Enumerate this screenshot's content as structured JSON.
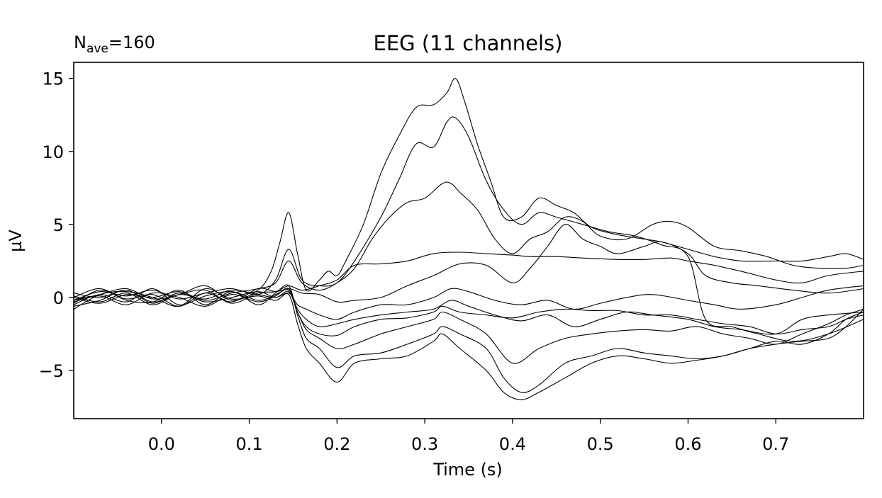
{
  "chart_data": {
    "type": "line",
    "title": "EEG (11 channels)",
    "annotation": {
      "prefix": "N",
      "subscript": "ave",
      "suffix": "=160"
    },
    "xlabel": "Time (s)",
    "ylabel": "µV",
    "xlim": [
      -0.1,
      0.8
    ],
    "ylim": [
      -8.3,
      16.1
    ],
    "xticks": [
      0.0,
      0.1,
      0.2,
      0.3,
      0.4,
      0.5,
      0.6,
      0.7
    ],
    "xtick_labels": [
      "0.0",
      "0.1",
      "0.2",
      "0.3",
      "0.4",
      "0.5",
      "0.6",
      "0.7"
    ],
    "yticks": [
      -5,
      0,
      5,
      10,
      15
    ],
    "ytick_labels": [
      "−5",
      "0",
      "5",
      "10",
      "15"
    ],
    "grid": false,
    "line_color": "#000000",
    "series": [
      {
        "x": [
          -0.1,
          -0.07,
          -0.04,
          -0.01,
          0.02,
          0.05,
          0.08,
          0.11,
          0.125,
          0.135,
          0.145,
          0.155,
          0.165,
          0.18,
          0.19,
          0.2,
          0.21,
          0.23,
          0.25,
          0.27,
          0.29,
          0.31,
          0.325,
          0.335,
          0.345,
          0.36,
          0.375,
          0.39,
          0.41,
          0.43,
          0.45,
          0.47,
          0.49,
          0.52,
          0.55,
          0.57,
          0.6,
          0.63,
          0.66,
          0.7,
          0.73,
          0.76,
          0.78,
          0.8
        ],
        "y": [
          -0.3,
          0.2,
          0.6,
          -0.1,
          0.2,
          0.8,
          -0.2,
          0.5,
          1.8,
          3.8,
          5.8,
          3.0,
          0.5,
          1.2,
          1.8,
          1.5,
          2.5,
          5.0,
          8.5,
          11.0,
          13.0,
          13.2,
          14.0,
          15.0,
          13.5,
          10.5,
          8.0,
          5.5,
          5.5,
          6.8,
          6.3,
          5.8,
          4.8,
          4.3,
          4.0,
          3.8,
          3.3,
          2.8,
          2.5,
          2.5,
          2.5,
          2.8,
          3.0,
          2.6
        ]
      },
      {
        "x": [
          -0.1,
          -0.07,
          -0.04,
          -0.01,
          0.02,
          0.05,
          0.08,
          0.11,
          0.13,
          0.145,
          0.16,
          0.18,
          0.2,
          0.22,
          0.25,
          0.27,
          0.29,
          0.31,
          0.325,
          0.335,
          0.35,
          0.37,
          0.39,
          0.41,
          0.43,
          0.45,
          0.48,
          0.51,
          0.54,
          0.57,
          0.6,
          0.62,
          0.65,
          0.68,
          0.72,
          0.76,
          0.8
        ],
        "y": [
          -0.2,
          0.4,
          0.1,
          0.5,
          -0.1,
          0.3,
          0.6,
          0.2,
          1.2,
          3.3,
          1.2,
          0.8,
          1.0,
          2.5,
          5.5,
          8.0,
          10.5,
          10.3,
          12.0,
          12.3,
          11.0,
          8.0,
          6.0,
          5.0,
          5.8,
          5.5,
          5.0,
          4.5,
          4.2,
          3.6,
          2.8,
          -1.5,
          -2.0,
          -2.5,
          -3.0,
          -2.5,
          -1.5
        ]
      },
      {
        "x": [
          -0.1,
          -0.07,
          -0.04,
          -0.01,
          0.02,
          0.05,
          0.08,
          0.11,
          0.13,
          0.145,
          0.16,
          0.18,
          0.2,
          0.22,
          0.24,
          0.26,
          0.28,
          0.3,
          0.32,
          0.33,
          0.34,
          0.36,
          0.38,
          0.4,
          0.42,
          0.44,
          0.46,
          0.48,
          0.5,
          0.53,
          0.56,
          0.58,
          0.6,
          0.63,
          0.66,
          0.69,
          0.72,
          0.75,
          0.78,
          0.8
        ],
        "y": [
          0.0,
          -0.4,
          0.2,
          0.0,
          0.4,
          -0.2,
          0.3,
          0.6,
          1.0,
          2.5,
          1.0,
          0.5,
          1.0,
          2.0,
          4.0,
          5.5,
          6.5,
          6.8,
          7.8,
          7.8,
          7.2,
          6.0,
          4.0,
          3.0,
          4.0,
          4.5,
          5.5,
          5.2,
          4.2,
          4.0,
          5.0,
          5.2,
          4.8,
          3.5,
          3.2,
          2.8,
          2.2,
          2.0,
          2.0,
          2.2
        ]
      },
      {
        "x": [
          -0.1,
          -0.07,
          -0.04,
          -0.01,
          0.02,
          0.05,
          0.08,
          0.11,
          0.13,
          0.145,
          0.16,
          0.18,
          0.2,
          0.22,
          0.25,
          0.28,
          0.31,
          0.34,
          0.37,
          0.4,
          0.42,
          0.45,
          0.48,
          0.52,
          0.55,
          0.58,
          0.6,
          0.63,
          0.66,
          0.7,
          0.73,
          0.76,
          0.8
        ],
        "y": [
          0.3,
          0.0,
          0.5,
          -0.3,
          0.2,
          0.5,
          -0.4,
          0.3,
          0.4,
          0.8,
          0.5,
          0.8,
          1.2,
          2.2,
          2.3,
          2.5,
          3.0,
          3.1,
          3.0,
          2.9,
          2.8,
          2.8,
          2.7,
          2.6,
          2.6,
          2.7,
          2.5,
          2.2,
          1.8,
          1.2,
          1.0,
          1.5,
          1.8
        ]
      },
      {
        "x": [
          -0.1,
          -0.07,
          -0.04,
          -0.01,
          0.02,
          0.05,
          0.08,
          0.11,
          0.13,
          0.145,
          0.16,
          0.18,
          0.2,
          0.22,
          0.25,
          0.28,
          0.31,
          0.34,
          0.37,
          0.4,
          0.42,
          0.44,
          0.46,
          0.48,
          0.5,
          0.52,
          0.55,
          0.57,
          0.6,
          0.62,
          0.65,
          0.68,
          0.72,
          0.76,
          0.8
        ],
        "y": [
          -0.5,
          0.2,
          -0.3,
          0.6,
          -0.5,
          0.1,
          0.4,
          -0.2,
          0.2,
          0.6,
          0.3,
          0.2,
          -0.3,
          -0.2,
          0.0,
          0.8,
          1.5,
          2.3,
          2.2,
          1.0,
          2.0,
          3.5,
          5.0,
          4.0,
          3.5,
          3.0,
          3.5,
          3.8,
          3.0,
          1.5,
          1.0,
          0.8,
          0.5,
          0.3,
          0.6
        ]
      },
      {
        "x": [
          -0.1,
          -0.07,
          -0.04,
          -0.01,
          0.02,
          0.05,
          0.08,
          0.11,
          0.13,
          0.145,
          0.155,
          0.165,
          0.18,
          0.2,
          0.22,
          0.25,
          0.28,
          0.31,
          0.33,
          0.35,
          0.38,
          0.41,
          0.44,
          0.47,
          0.5,
          0.53,
          0.56,
          0.6,
          0.63,
          0.66,
          0.7,
          0.73,
          0.76,
          0.8
        ],
        "y": [
          0.1,
          -0.3,
          0.3,
          -0.5,
          0.2,
          -0.1,
          0.5,
          0.2,
          0.0,
          0.3,
          -0.5,
          -0.8,
          -1.2,
          -1.5,
          -1.0,
          -0.5,
          -0.5,
          0.0,
          0.6,
          0.4,
          -0.2,
          -0.5,
          -0.2,
          -0.8,
          -0.4,
          0.0,
          0.2,
          -0.2,
          -0.5,
          -0.8,
          -0.5,
          0.0,
          0.5,
          0.8
        ]
      },
      {
        "x": [
          -0.1,
          -0.07,
          -0.04,
          -0.01,
          0.02,
          0.05,
          0.08,
          0.11,
          0.13,
          0.145,
          0.155,
          0.165,
          0.18,
          0.2,
          0.22,
          0.25,
          0.28,
          0.31,
          0.33,
          0.35,
          0.38,
          0.41,
          0.44,
          0.47,
          0.5,
          0.53,
          0.56,
          0.6,
          0.63,
          0.66,
          0.7,
          0.73,
          0.76,
          0.8
        ],
        "y": [
          -0.4,
          0.5,
          -0.1,
          0.2,
          -0.6,
          0.3,
          -0.3,
          0.6,
          0.4,
          0.5,
          -0.8,
          -1.5,
          -2.0,
          -1.8,
          -1.5,
          -1.2,
          -1.0,
          -0.8,
          -0.2,
          -0.6,
          -1.2,
          -1.6,
          -1.2,
          -2.0,
          -1.5,
          -1.0,
          -1.2,
          -1.5,
          -2.0,
          -2.2,
          -2.5,
          -1.5,
          -1.2,
          -1.0
        ]
      },
      {
        "x": [
          -0.1,
          -0.07,
          -0.04,
          -0.01,
          0.02,
          0.05,
          0.08,
          0.11,
          0.13,
          0.145,
          0.155,
          0.165,
          0.18,
          0.2,
          0.22,
          0.25,
          0.28,
          0.31,
          0.32,
          0.34,
          0.37,
          0.4,
          0.43,
          0.46,
          0.49,
          0.52,
          0.55,
          0.58,
          0.61,
          0.64,
          0.67,
          0.7,
          0.73,
          0.76,
          0.78,
          0.8
        ],
        "y": [
          -0.2,
          0.1,
          -0.5,
          0.3,
          0.0,
          -0.6,
          0.2,
          -0.3,
          0.1,
          0.6,
          -1.0,
          -2.0,
          -2.5,
          -2.6,
          -2.0,
          -1.5,
          -1.4,
          -1.0,
          -0.6,
          -1.0,
          -1.2,
          -1.4,
          -1.0,
          -0.8,
          -0.9,
          -0.9,
          -1.2,
          -1.2,
          -1.5,
          -1.8,
          -2.0,
          -2.5,
          -2.2,
          -2.0,
          -1.5,
          -1.2
        ]
      },
      {
        "x": [
          -0.1,
          -0.07,
          -0.04,
          -0.01,
          0.02,
          0.05,
          0.08,
          0.11,
          0.13,
          0.145,
          0.155,
          0.165,
          0.18,
          0.2,
          0.22,
          0.25,
          0.28,
          0.31,
          0.32,
          0.34,
          0.37,
          0.4,
          0.43,
          0.46,
          0.49,
          0.52,
          0.55,
          0.58,
          0.61,
          0.64,
          0.67,
          0.7,
          0.73,
          0.76,
          0.78,
          0.8
        ],
        "y": [
          -0.6,
          -0.2,
          0.5,
          -0.4,
          0.3,
          -0.3,
          0.0,
          0.4,
          0.0,
          0.4,
          -1.0,
          -2.2,
          -2.8,
          -3.5,
          -3.2,
          -2.5,
          -2.0,
          -1.5,
          -1.0,
          -1.5,
          -2.5,
          -4.5,
          -3.5,
          -2.8,
          -2.5,
          -2.3,
          -2.2,
          -2.3,
          -2.0,
          -2.5,
          -2.8,
          -3.2,
          -2.5,
          -1.8,
          -1.2,
          -0.8
        ]
      },
      {
        "x": [
          -0.1,
          -0.07,
          -0.04,
          -0.01,
          0.02,
          0.05,
          0.08,
          0.11,
          0.13,
          0.145,
          0.155,
          0.165,
          0.18,
          0.2,
          0.22,
          0.25,
          0.28,
          0.31,
          0.32,
          0.34,
          0.37,
          0.39,
          0.41,
          0.43,
          0.46,
          0.49,
          0.52,
          0.55,
          0.58,
          0.61,
          0.64,
          0.67,
          0.7,
          0.73,
          0.76,
          0.78,
          0.8
        ],
        "y": [
          0.0,
          0.6,
          -0.2,
          -0.3,
          0.5,
          -0.5,
          0.4,
          -0.5,
          0.3,
          0.8,
          -1.2,
          -2.8,
          -3.5,
          -4.8,
          -4.0,
          -3.8,
          -3.2,
          -2.5,
          -2.0,
          -2.5,
          -3.5,
          -5.5,
          -6.5,
          -6.0,
          -4.5,
          -4.0,
          -3.5,
          -3.8,
          -4.0,
          -4.2,
          -4.0,
          -3.5,
          -3.0,
          -3.2,
          -2.5,
          -1.5,
          -1.0
        ]
      },
      {
        "x": [
          -0.1,
          -0.07,
          -0.04,
          -0.01,
          0.02,
          0.05,
          0.08,
          0.11,
          0.13,
          0.145,
          0.155,
          0.165,
          0.18,
          0.2,
          0.22,
          0.25,
          0.28,
          0.31,
          0.32,
          0.34,
          0.37,
          0.39,
          0.41,
          0.43,
          0.46,
          0.49,
          0.52,
          0.55,
          0.58,
          0.61,
          0.64,
          0.67,
          0.7,
          0.73,
          0.76,
          0.78,
          0.8
        ],
        "y": [
          -0.8,
          0.2,
          0.4,
          0.0,
          -0.6,
          0.6,
          -0.1,
          0.1,
          -0.2,
          0.2,
          -1.8,
          -3.5,
          -4.5,
          -5.8,
          -4.5,
          -4.2,
          -4.0,
          -3.0,
          -2.5,
          -3.5,
          -5.0,
          -6.5,
          -7.0,
          -6.5,
          -5.5,
          -4.5,
          -4.0,
          -4.2,
          -4.5,
          -4.3,
          -4.0,
          -3.5,
          -3.2,
          -3.0,
          -2.8,
          -2.0,
          -0.8
        ]
      }
    ]
  }
}
